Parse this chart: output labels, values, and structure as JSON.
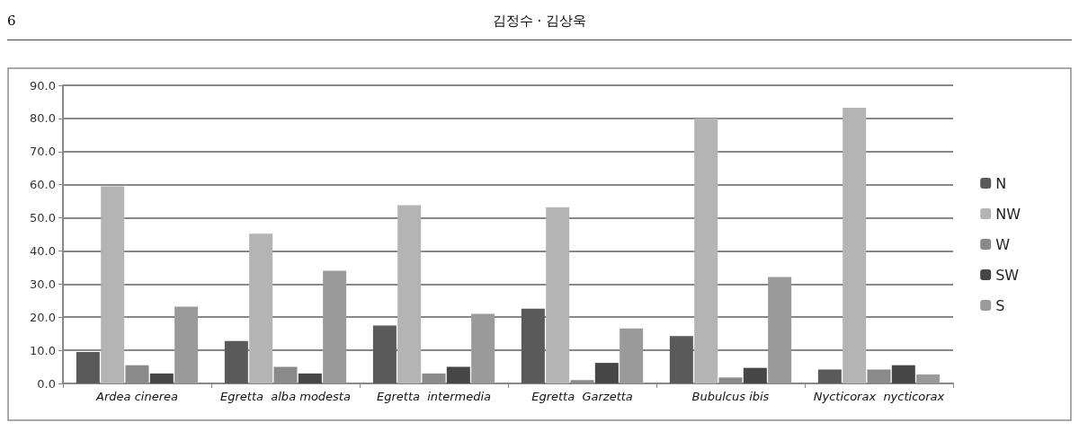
{
  "chart_data": {
    "type": "bar",
    "annotations": [
      "6",
      "김정수 · 김상욱"
    ],
    "categories": [
      "Ardea cinerea",
      "Egretta  alba modesta",
      "Egretta  intermedia",
      "Egretta  Garzetta",
      "Bubulcus ibis",
      "Nycticorax  nycticorax"
    ],
    "series": [
      {
        "name": "N",
        "color": "#5a5a5a",
        "values": [
          9.5,
          12.8,
          17.5,
          22.6,
          14.3,
          4.2
        ]
      },
      {
        "name": "NW",
        "color": "#b4b4b4",
        "values": [
          59.5,
          45.2,
          53.8,
          53.2,
          80.0,
          83.2
        ]
      },
      {
        "name": "W",
        "color": "#8a8a8a",
        "values": [
          5.5,
          5.0,
          3.0,
          1.0,
          1.8,
          4.2
        ]
      },
      {
        "name": "SW",
        "color": "#464646",
        "values": [
          3.0,
          3.0,
          5.0,
          6.2,
          4.7,
          5.5
        ]
      },
      {
        "name": "S",
        "color": "#9a9a9a",
        "values": [
          23.2,
          34.0,
          21.0,
          16.6,
          32.1,
          2.7
        ]
      }
    ],
    "ylim": [
      0,
      90
    ],
    "yticks": [
      {
        "value": 0,
        "label": "0.0"
      },
      {
        "value": 10,
        "label": "10.0"
      },
      {
        "value": 20,
        "label": "20.0"
      },
      {
        "value": 30,
        "label": "30.0"
      },
      {
        "value": 40,
        "label": "40.0"
      },
      {
        "value": 50,
        "label": "50.0"
      },
      {
        "value": 60,
        "label": "60.0"
      },
      {
        "value": 70,
        "label": "70.0"
      },
      {
        "value": 80,
        "label": "80.0"
      },
      {
        "value": 90,
        "label": "90.0"
      }
    ],
    "grid": "y",
    "legend": "right"
  }
}
